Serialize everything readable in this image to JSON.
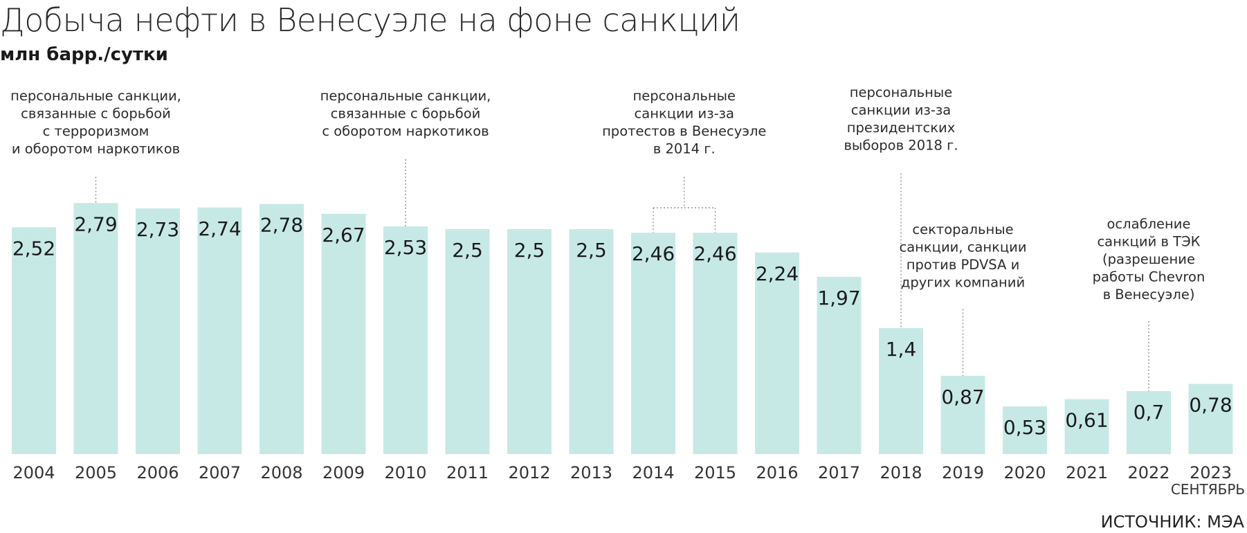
{
  "chart_data": {
    "type": "bar",
    "title": "Добыча нефти в Венесуэле на фоне санкций",
    "subtitle": "млн барр./сутки",
    "categories": [
      "2004",
      "2005",
      "2006",
      "2007",
      "2008",
      "2009",
      "2010",
      "2011",
      "2012",
      "2013",
      "2014",
      "2015",
      "2016",
      "2017",
      "2018",
      "2019",
      "2020",
      "2021",
      "2022",
      "2023"
    ],
    "values": [
      2.52,
      2.79,
      2.73,
      2.74,
      2.78,
      2.67,
      2.53,
      2.5,
      2.5,
      2.5,
      2.46,
      2.46,
      2.24,
      1.97,
      1.4,
      0.87,
      0.53,
      0.61,
      0.7,
      0.78
    ],
    "value_labels": [
      "2,52",
      "2,79",
      "2,73",
      "2,74",
      "2,78",
      "2,67",
      "2,53",
      "2,5",
      "2,5",
      "2,5",
      "2,46",
      "2,46",
      "2,24",
      "1,97",
      "1,4",
      "0,87",
      "0,53",
      "0,61",
      "0,7",
      "0,78"
    ],
    "category_notes": [
      {
        "category": "2023",
        "text": "СЕНТЯБРЬ"
      }
    ],
    "ylim": [
      0,
      2.9
    ],
    "grid": false,
    "bar_color": "#c7e9e6",
    "annotations": [
      {
        "targets": [
          "2005"
        ],
        "lines": [
          "персональные санкции,",
          "связанные с борьбой",
          "с терроризмом",
          "и оборотом наркотиков"
        ]
      },
      {
        "targets": [
          "2010"
        ],
        "lines": [
          "персональные санкции,",
          "связанные с борьбой",
          "с оборотом наркотиков"
        ]
      },
      {
        "targets": [
          "2014",
          "2015"
        ],
        "lines": [
          "персональные",
          "санкции из-за",
          "протестов в Венесуэле",
          "в 2014 г."
        ]
      },
      {
        "targets": [
          "2018"
        ],
        "lines": [
          "персональные",
          "санкции из-за",
          "президентских",
          "выборов 2018 г."
        ]
      },
      {
        "targets": [
          "2019"
        ],
        "lines": [
          "секторальные",
          "санкции, санкции",
          "против PDVSA и",
          "других компаний"
        ]
      },
      {
        "targets": [
          "2022"
        ],
        "lines": [
          "ослабление",
          "санкций в ТЭК",
          "(разрешение",
          "работы Chevron",
          "в Венесуэле)"
        ]
      }
    ],
    "source": "ИСТОЧНИК: МЭА"
  }
}
